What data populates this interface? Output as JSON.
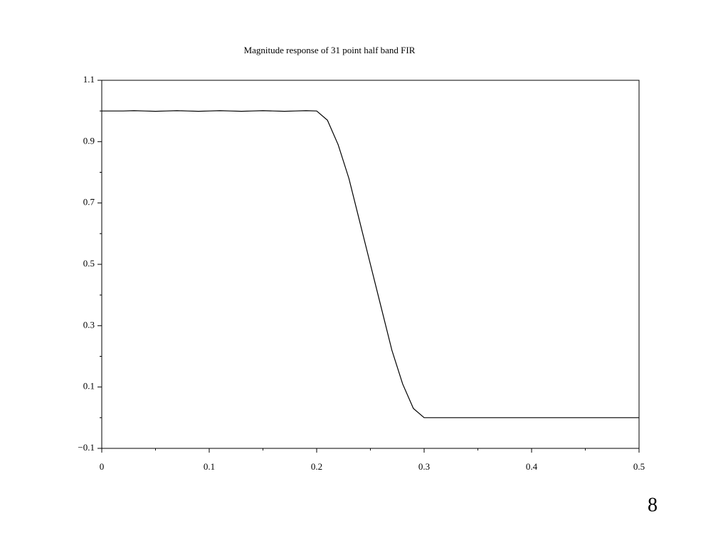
{
  "chart_data": {
    "type": "line",
    "title": "Magnitude response of 31 point half band FIR",
    "x": [
      0,
      0.01,
      0.02,
      0.03,
      0.04,
      0.05,
      0.06,
      0.07,
      0.08,
      0.09,
      0.1,
      0.11,
      0.12,
      0.13,
      0.14,
      0.15,
      0.16,
      0.17,
      0.18,
      0.19,
      0.2,
      0.21,
      0.22,
      0.23,
      0.24,
      0.25,
      0.26,
      0.27,
      0.28,
      0.29,
      0.3,
      0.31,
      0.32,
      0.33,
      0.34,
      0.35,
      0.36,
      0.37,
      0.38,
      0.39,
      0.4,
      0.41,
      0.42,
      0.43,
      0.44,
      0.45,
      0.46,
      0.47,
      0.48,
      0.49,
      0.5
    ],
    "values": [
      1.0,
      1.0,
      1.0,
      1.001,
      1.0,
      0.999,
      1.0,
      1.001,
      1.0,
      0.999,
      1.0,
      1.001,
      1.0,
      0.999,
      1.0,
      1.001,
      1.0,
      0.999,
      1.0,
      1.001,
      1.0,
      0.97,
      0.89,
      0.78,
      0.64,
      0.5,
      0.36,
      0.22,
      0.11,
      0.03,
      0.0,
      0.0,
      0.0,
      0.0,
      0.0,
      0.0,
      0.0,
      0.0,
      0.0,
      0.0,
      0.0,
      0.0,
      0.0,
      0.0,
      0.0,
      0.0,
      0.0,
      0.0,
      0.0,
      0.0,
      0.0
    ],
    "color": "#000000",
    "xlim": [
      0,
      0.5
    ],
    "xticks": [
      0,
      0.1,
      0.2,
      0.3,
      0.4,
      0.5
    ],
    "xminor_ticks": [
      0.05,
      0.15,
      0.25,
      0.35,
      0.45
    ],
    "ylim": [
      -0.1,
      1.1
    ],
    "yticks": [
      {
        "value": -0.1,
        "label": "−0.1"
      },
      0.1,
      0.3,
      0.5,
      0.7,
      0.9,
      1.1
    ],
    "yminor_ticks": [
      0,
      0.2,
      0.4,
      0.6,
      0.8,
      1.0
    ],
    "grid": false
  },
  "page_number": "8"
}
